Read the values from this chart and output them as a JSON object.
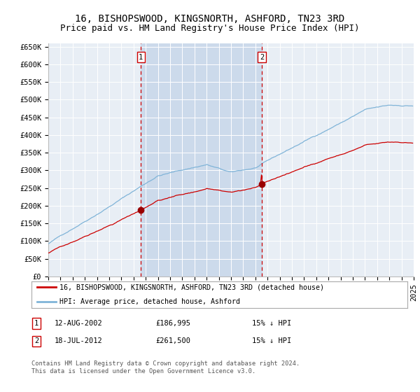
{
  "title": "16, BISHOPSWOOD, KINGSNORTH, ASHFORD, TN23 3RD",
  "subtitle": "Price paid vs. HM Land Registry's House Price Index (HPI)",
  "legend_label_red": "16, BISHOPSWOOD, KINGSNORTH, ASHFORD, TN23 3RD (detached house)",
  "legend_label_blue": "HPI: Average price, detached house, Ashford",
  "sale1_date": "12-AUG-2002",
  "sale1_price": 186995,
  "sale1_x": 2002.6,
  "sale2_date": "18-JUL-2012",
  "sale2_price": 261500,
  "sale2_x": 2012.54,
  "sale1_pct": "15% ↓ HPI",
  "sale2_pct": "15% ↓ HPI",
  "footnote": "Contains HM Land Registry data © Crown copyright and database right 2024.\nThis data is licensed under the Open Government Licence v3.0.",
  "ylim": [
    0,
    660000
  ],
  "yticks": [
    0,
    50000,
    100000,
    150000,
    200000,
    250000,
    300000,
    350000,
    400000,
    450000,
    500000,
    550000,
    600000,
    650000
  ],
  "xlim_start": 1995,
  "xlim_end": 2025,
  "background_color": "#ffffff",
  "plot_bg_color": "#e8eef5",
  "shade_color": "#ccdaeb",
  "grid_color": "#ffffff",
  "red_line_color": "#cc0000",
  "blue_line_color": "#80b4d8",
  "marker_color": "#990000",
  "vline_color": "#cc0000",
  "title_fontsize": 10,
  "subtitle_fontsize": 9,
  "tick_fontsize": 7.5
}
